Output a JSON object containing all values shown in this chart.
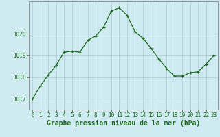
{
  "x": [
    0,
    1,
    2,
    3,
    4,
    5,
    6,
    7,
    8,
    9,
    10,
    11,
    12,
    13,
    14,
    15,
    16,
    17,
    18,
    19,
    20,
    21,
    22,
    23
  ],
  "y": [
    1017.0,
    1017.6,
    1018.1,
    1018.55,
    1019.15,
    1019.2,
    1019.15,
    1019.7,
    1019.9,
    1020.3,
    1021.05,
    1021.2,
    1020.85,
    1020.1,
    1019.8,
    1019.35,
    1018.85,
    1018.4,
    1018.05,
    1018.05,
    1018.2,
    1018.25,
    1018.6,
    1019.0
  ],
  "line_color": "#1a6b1a",
  "marker": "+",
  "marker_size": 3.5,
  "marker_color": "#1a6b1a",
  "bg_color": "#d0eaf2",
  "grid_color": "#b0d0dc",
  "xlabel": "Graphe pression niveau de la mer (hPa)",
  "xlabel_fontsize": 7.0,
  "ytick_labels": [
    "1017",
    "1018",
    "1019",
    "1020"
  ],
  "ylim": [
    1016.5,
    1021.5
  ],
  "xlim": [
    -0.5,
    23.5
  ],
  "yticks": [
    1017,
    1018,
    1019,
    1020
  ],
  "xticks": [
    0,
    1,
    2,
    3,
    4,
    5,
    6,
    7,
    8,
    9,
    10,
    11,
    12,
    13,
    14,
    15,
    16,
    17,
    18,
    19,
    20,
    21,
    22,
    23
  ],
  "tick_fontsize": 5.5,
  "axis_label_color": "#1a6b1a",
  "spine_color": "#888888",
  "linewidth": 0.9
}
